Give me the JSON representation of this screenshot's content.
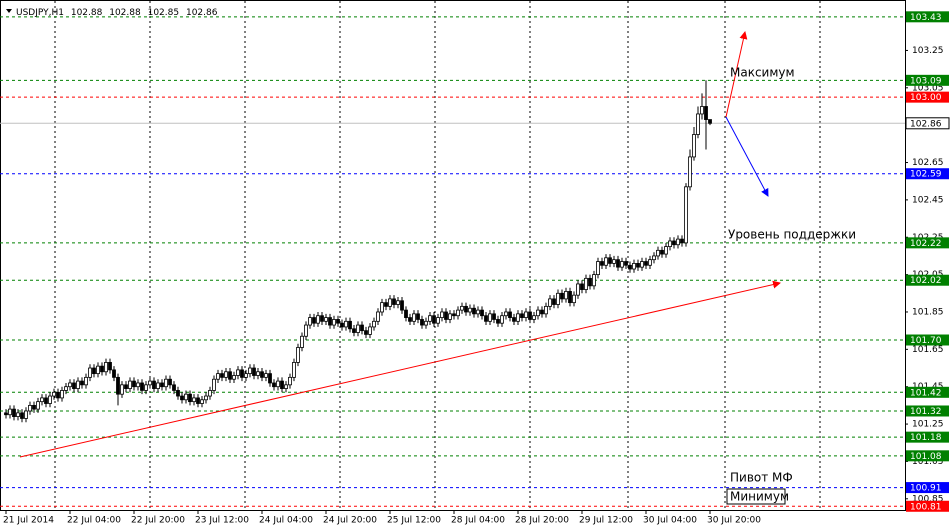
{
  "chart_data": {
    "type": "candlestick",
    "symbol": "USDJPY,H1",
    "annotations": [
      "Максимум",
      "Уровень поддержки",
      "Пивот МФ",
      "Минимум"
    ],
    "ylim": [
      100.79,
      103.52
    ],
    "xlim": [
      -1.5,
      224.75
    ],
    "yticks": [
      103.25,
      103.05,
      102.85,
      102.65,
      102.45,
      102.25,
      102.05,
      101.85,
      101.65,
      101.45,
      101.25,
      101.05,
      100.85
    ],
    "xticks": [
      {
        "value": 0,
        "label": "21 Jul 2014"
      },
      {
        "value": 16,
        "label": "22 Jul 04:00"
      },
      {
        "value": 32,
        "label": "22 Jul 20:00"
      },
      {
        "value": 48,
        "label": "23 Jul 12:00"
      },
      {
        "value": 64,
        "label": "24 Jul 04:00"
      },
      {
        "value": 80,
        "label": "24 Jul 20:00"
      },
      {
        "value": 96,
        "label": "25 Jul 12:00"
      },
      {
        "value": 112,
        "label": "28 Jul 04:00"
      },
      {
        "value": 128,
        "label": "28 Jul 20:00"
      },
      {
        "value": 144,
        "label": "29 Jul 12:00"
      },
      {
        "value": 160,
        "label": "30 Jul 04:00"
      },
      {
        "value": 176,
        "label": "30 Jul 20:00"
      }
    ],
    "levels": [
      {
        "value": 103.43,
        "color": "#008000"
      },
      {
        "value": 103.09,
        "color": "#008000"
      },
      {
        "value": 103,
        "label": "103.00",
        "color": "#ff0000"
      },
      {
        "value": 102.59,
        "color": "#0000ff"
      },
      {
        "value": 102.22,
        "color": "#008000"
      },
      {
        "value": 102.02,
        "color": "#008000"
      },
      {
        "value": 101.7,
        "label": "101.70",
        "color": "#008000"
      },
      {
        "value": 101.42,
        "color": "#008000"
      },
      {
        "value": 101.32,
        "color": "#008000"
      },
      {
        "value": 101.18,
        "color": "#008000"
      },
      {
        "value": 101.08,
        "color": "#008000"
      },
      {
        "value": 100.91,
        "color": "#0000ff"
      },
      {
        "value": 100.81,
        "color": "#ff0000"
      }
    ],
    "open": [
      101.31,
      101.3,
      101.33,
      101.29,
      101.31,
      101.28,
      101.32,
      101.35,
      101.33,
      101.37,
      101.39,
      101.36,
      101.4,
      101.42,
      101.39,
      101.43,
      101.45,
      101.47,
      101.44,
      101.48,
      101.46,
      101.5,
      101.55,
      101.52,
      101.56,
      101.53,
      101.58,
      101.54,
      101.5,
      101.41,
      101.46,
      101.44,
      101.48,
      101.45,
      101.47,
      101.43,
      101.46,
      101.48,
      101.44,
      101.47,
      101.45,
      101.49,
      101.46,
      101.43,
      101.4,
      101.38,
      101.41,
      101.37,
      101.39,
      101.36,
      101.38,
      101.4,
      101.43,
      101.49,
      101.52,
      101.5,
      101.53,
      101.49,
      101.51,
      101.54,
      101.5,
      101.52,
      101.55,
      101.51,
      101.53,
      101.5,
      101.52,
      101.47,
      101.45,
      101.48,
      101.44,
      101.46,
      101.5,
      101.58,
      101.66,
      101.72,
      101.78,
      101.82,
      101.79,
      101.83,
      101.8,
      101.82,
      101.78,
      101.81,
      101.79,
      101.77,
      101.8,
      101.76,
      101.74,
      101.78,
      101.75,
      101.73,
      101.77,
      101.8,
      101.85,
      101.9,
      101.88,
      101.92,
      101.89,
      101.91,
      101.86,
      101.82,
      101.8,
      101.84,
      101.81,
      101.78,
      101.8,
      101.83,
      101.79,
      101.82,
      101.85,
      101.81,
      101.84,
      101.83,
      101.86,
      101.88,
      101.85,
      101.87,
      101.84,
      101.86,
      101.83,
      101.8,
      101.84,
      101.81,
      101.79,
      101.83,
      101.85,
      101.82,
      101.8,
      101.84,
      101.82,
      101.85,
      101.81,
      101.83,
      101.86,
      101.84,
      101.88,
      101.92,
      101.89,
      101.95,
      101.92,
      101.96,
      101.9,
      101.94,
      102.0,
      101.97,
      102.03,
      101.99,
      102.05,
      102.12,
      102.1,
      102.14,
      102.11,
      102.13,
      102.09,
      102.12,
      102.1,
      102.08,
      102.11,
      102.09,
      102.12,
      102.1,
      102.13,
      102.15,
      102.18,
      102.16,
      102.2,
      102.23,
      102.21,
      102.24,
      102.22,
      102.52,
      102.68,
      102.8,
      102.91,
      102.95,
      102.88
    ],
    "high": [
      101.33,
      101.35,
      101.35,
      101.33,
      101.33,
      101.34,
      101.37,
      101.37,
      101.39,
      101.41,
      101.41,
      101.42,
      101.44,
      101.44,
      101.45,
      101.47,
      101.49,
      101.49,
      101.5,
      101.5,
      101.52,
      101.57,
      101.57,
      101.58,
      101.58,
      101.6,
      101.6,
      101.56,
      101.52,
      101.48,
      101.48,
      101.5,
      101.5,
      101.49,
      101.49,
      101.48,
      101.5,
      101.5,
      101.49,
      101.49,
      101.51,
      101.51,
      101.48,
      101.45,
      101.42,
      101.43,
      101.43,
      101.41,
      101.41,
      101.4,
      101.42,
      101.45,
      101.51,
      101.54,
      101.54,
      101.55,
      101.55,
      101.53,
      101.56,
      101.56,
      101.54,
      101.57,
      101.57,
      101.55,
      101.55,
      101.54,
      101.54,
      101.49,
      101.5,
      101.5,
      101.48,
      101.52,
      101.6,
      101.68,
      101.74,
      101.8,
      101.84,
      101.84,
      101.85,
      101.85,
      101.84,
      101.84,
      101.83,
      101.83,
      101.81,
      101.82,
      101.82,
      101.78,
      101.8,
      101.8,
      101.77,
      101.79,
      101.82,
      101.87,
      101.92,
      101.92,
      101.94,
      101.94,
      101.93,
      101.93,
      101.88,
      101.84,
      101.86,
      101.86,
      101.83,
      101.82,
      101.85,
      101.85,
      101.84,
      101.87,
      101.87,
      101.86,
      101.86,
      101.88,
      101.9,
      101.9,
      101.89,
      101.89,
      101.88,
      101.88,
      101.85,
      101.86,
      101.86,
      101.83,
      101.85,
      101.87,
      101.87,
      101.84,
      101.86,
      101.86,
      101.87,
      101.87,
      101.85,
      101.88,
      101.88,
      101.9,
      101.94,
      101.94,
      101.97,
      101.97,
      101.98,
      101.98,
      101.96,
      102.02,
      102.02,
      102.05,
      102.05,
      102.07,
      102.14,
      102.14,
      102.16,
      102.16,
      102.15,
      102.15,
      102.14,
      102.14,
      102.12,
      102.13,
      102.13,
      102.14,
      102.14,
      102.15,
      102.17,
      102.2,
      102.2,
      102.22,
      102.25,
      102.25,
      102.26,
      102.26,
      102.54,
      102.72,
      102.84,
      102.95,
      103.02,
      103.09,
      102.88
    ],
    "low": [
      101.28,
      101.28,
      101.27,
      101.27,
      101.26,
      101.26,
      101.3,
      101.31,
      101.31,
      101.35,
      101.34,
      101.34,
      101.38,
      101.37,
      101.37,
      101.41,
      101.43,
      101.42,
      101.42,
      101.44,
      101.44,
      101.48,
      101.5,
      101.5,
      101.51,
      101.51,
      101.52,
      101.48,
      101.35,
      101.39,
      101.42,
      101.42,
      101.43,
      101.43,
      101.41,
      101.41,
      101.44,
      101.42,
      101.42,
      101.43,
      101.43,
      101.44,
      101.41,
      101.38,
      101.36,
      101.36,
      101.35,
      101.35,
      101.34,
      101.34,
      101.36,
      101.38,
      101.41,
      101.47,
      101.48,
      101.48,
      101.47,
      101.47,
      101.49,
      101.48,
      101.48,
      101.5,
      101.49,
      101.49,
      101.48,
      101.48,
      101.45,
      101.43,
      101.43,
      101.42,
      101.42,
      101.44,
      101.48,
      101.56,
      101.64,
      101.7,
      101.76,
      101.77,
      101.77,
      101.78,
      101.78,
      101.76,
      101.76,
      101.77,
      101.75,
      101.75,
      101.74,
      101.72,
      101.72,
      101.73,
      101.71,
      101.71,
      101.75,
      101.78,
      101.83,
      101.86,
      101.86,
      101.87,
      101.87,
      101.84,
      101.8,
      101.78,
      101.78,
      101.79,
      101.76,
      101.76,
      101.78,
      101.77,
      101.77,
      101.8,
      101.79,
      101.79,
      101.81,
      101.81,
      101.84,
      101.83,
      101.83,
      101.82,
      101.82,
      101.81,
      101.78,
      101.78,
      101.79,
      101.77,
      101.77,
      101.81,
      101.8,
      101.78,
      101.78,
      101.8,
      101.8,
      101.79,
      101.79,
      101.81,
      101.82,
      101.82,
      101.86,
      101.87,
      101.87,
      101.9,
      101.9,
      101.88,
      101.88,
      101.92,
      101.95,
      101.95,
      101.97,
      101.97,
      102.03,
      102.08,
      102.08,
      102.09,
      102.09,
      102.07,
      102.07,
      102.08,
      102.06,
      102.06,
      102.07,
      102.07,
      102.08,
      102.08,
      102.11,
      102.13,
      102.14,
      102.14,
      102.18,
      102.19,
      102.19,
      102.2,
      102.2,
      102.5,
      102.66,
      102.78,
      102.88,
      102.72,
      102.85
    ],
    "close": [
      101.3,
      101.33,
      101.29,
      101.31,
      101.28,
      101.32,
      101.35,
      101.33,
      101.37,
      101.39,
      101.36,
      101.4,
      101.42,
      101.39,
      101.43,
      101.45,
      101.47,
      101.44,
      101.48,
      101.46,
      101.5,
      101.55,
      101.52,
      101.56,
      101.53,
      101.58,
      101.54,
      101.5,
      101.41,
      101.46,
      101.44,
      101.48,
      101.45,
      101.47,
      101.43,
      101.46,
      101.48,
      101.44,
      101.47,
      101.45,
      101.49,
      101.46,
      101.43,
      101.4,
      101.38,
      101.41,
      101.37,
      101.39,
      101.36,
      101.38,
      101.4,
      101.43,
      101.49,
      101.52,
      101.5,
      101.53,
      101.49,
      101.51,
      101.54,
      101.5,
      101.52,
      101.55,
      101.51,
      101.53,
      101.5,
      101.52,
      101.47,
      101.45,
      101.48,
      101.44,
      101.46,
      101.5,
      101.58,
      101.66,
      101.72,
      101.78,
      101.82,
      101.79,
      101.83,
      101.8,
      101.82,
      101.78,
      101.81,
      101.79,
      101.77,
      101.8,
      101.76,
      101.74,
      101.78,
      101.75,
      101.73,
      101.77,
      101.8,
      101.85,
      101.9,
      101.88,
      101.92,
      101.89,
      101.91,
      101.86,
      101.82,
      101.8,
      101.84,
      101.81,
      101.78,
      101.8,
      101.83,
      101.79,
      101.82,
      101.85,
      101.81,
      101.84,
      101.83,
      101.86,
      101.88,
      101.85,
      101.87,
      101.84,
      101.86,
      101.83,
      101.8,
      101.84,
      101.81,
      101.79,
      101.83,
      101.85,
      101.82,
      101.8,
      101.84,
      101.82,
      101.85,
      101.81,
      101.83,
      101.86,
      101.84,
      101.88,
      101.92,
      101.89,
      101.95,
      101.92,
      101.96,
      101.9,
      101.94,
      102.0,
      101.97,
      102.03,
      101.99,
      102.05,
      102.12,
      102.1,
      102.14,
      102.11,
      102.13,
      102.09,
      102.12,
      102.1,
      102.08,
      102.11,
      102.09,
      102.12,
      102.1,
      102.13,
      102.15,
      102.18,
      102.16,
      102.2,
      102.23,
      102.21,
      102.24,
      102.22,
      102.52,
      102.68,
      102.8,
      102.91,
      102.95,
      102.88,
      102.86
    ]
  }
}
